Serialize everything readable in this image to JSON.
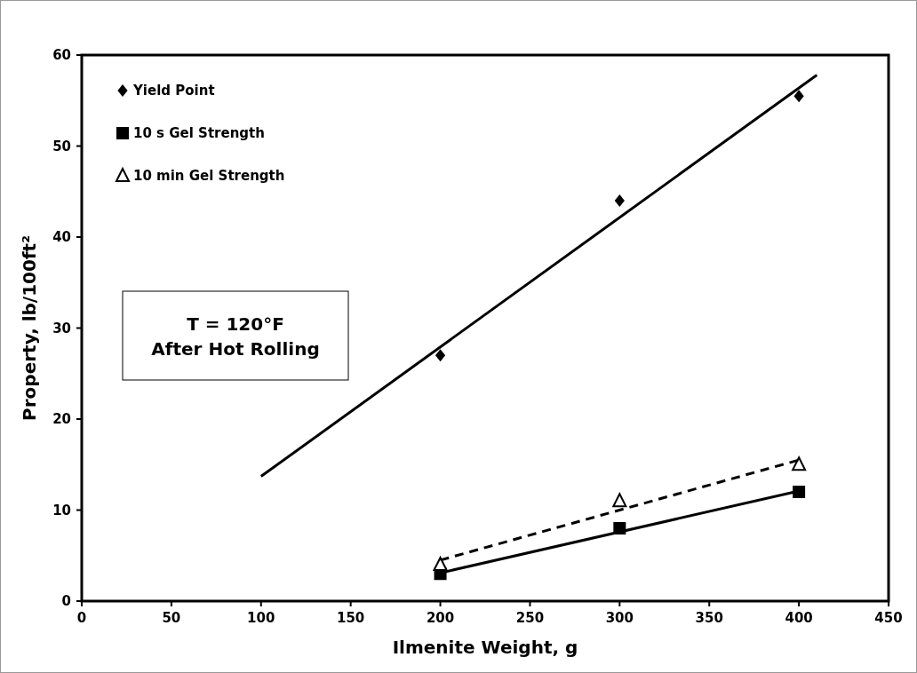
{
  "chart_data": {
    "type": "scatter",
    "xlabel": "Ilmenite Weight, g",
    "ylabel": "Property,  lb/100ft²",
    "x": [
      200,
      300,
      400
    ],
    "series": [
      {
        "name": "Yield Point",
        "type": "scatter",
        "color": "#000000",
        "marker": "diamond",
        "values": [
          27,
          44,
          55.5
        ]
      },
      {
        "name": "10 s Gel Strength",
        "type": "scatter",
        "color": "#000000",
        "marker": "square",
        "values": [
          3,
          8,
          12
        ]
      },
      {
        "name": "10 min Gel Strength",
        "type": "scatter",
        "color": "#000000",
        "marker": "triangle",
        "values": [
          4,
          11,
          15
        ]
      },
      {
        "type": "line",
        "color": "#000000",
        "line_style": "solid",
        "x": [
          100,
          410
        ],
        "values": [
          13.7,
          57.8
        ]
      },
      {
        "type": "line",
        "color": "#000000",
        "line_style": "solid",
        "x": [
          200,
          400
        ],
        "values": [
          3.1,
          12.1
        ]
      },
      {
        "type": "line",
        "color": "#000000",
        "line_style": "dashed",
        "x": [
          200,
          400
        ],
        "values": [
          4.5,
          15.5
        ]
      }
    ],
    "xlim": [
      0,
      450
    ],
    "xticks": [
      0,
      50,
      100,
      150,
      200,
      250,
      300,
      350,
      400,
      450
    ],
    "ylim": [
      0,
      60
    ],
    "yticks": [
      0,
      10,
      20,
      30,
      40,
      50,
      60
    ],
    "legend": "top left",
    "grid": false,
    "annotations": [
      "T = 120°F\nAfter Hot Rolling"
    ]
  }
}
